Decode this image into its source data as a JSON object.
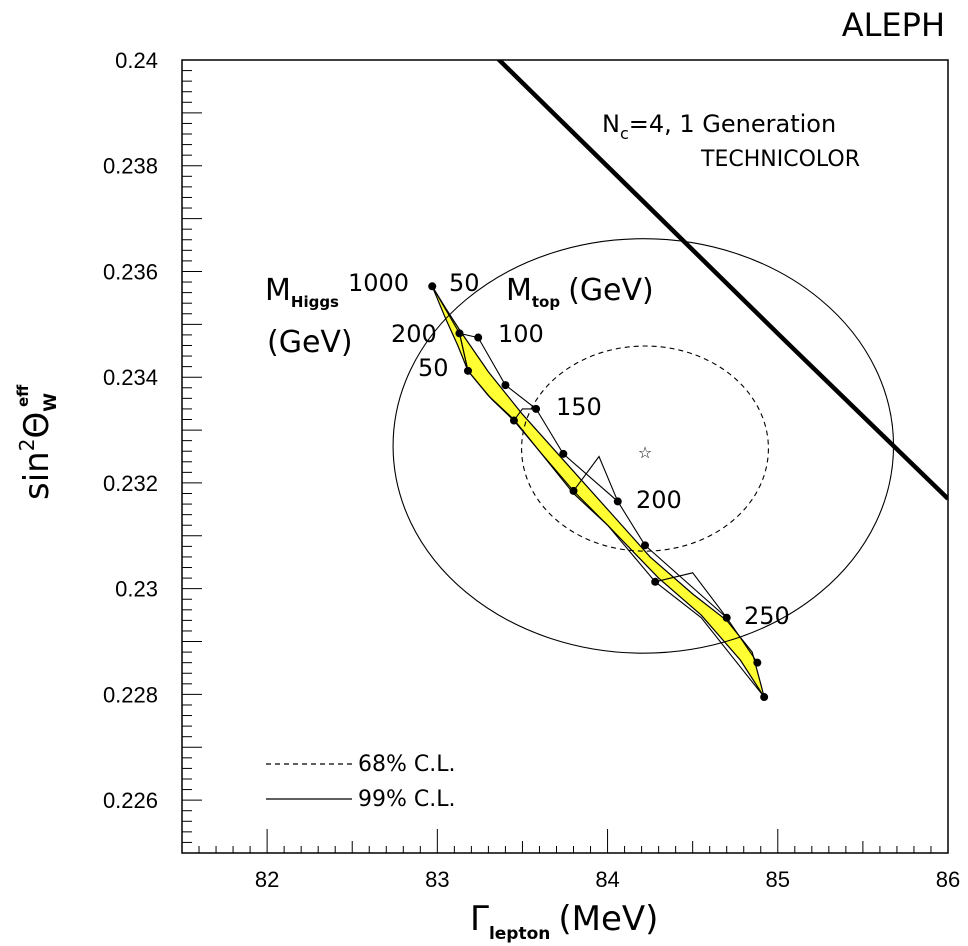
{
  "chart_data": {
    "type": "scatter",
    "experiment_label": "ALEPH",
    "xlabel": {
      "main": "Γ",
      "sub": "lepton",
      "unit": "(MeV)"
    },
    "ylabel": {
      "pre": "sin",
      "sup1": "2",
      "theta": "Θ",
      "sub": "W",
      "sup2": "eff"
    },
    "xlim": [
      81.5,
      86.0
    ],
    "ylim": [
      0.225,
      0.24
    ],
    "x_ticks": [
      82,
      83,
      84,
      85,
      86
    ],
    "x_tick_labels": [
      "82",
      "83",
      "84",
      "85",
      "86"
    ],
    "y_ticks": [
      0.226,
      0.228,
      0.23,
      0.232,
      0.234,
      0.236,
      0.238,
      0.24
    ],
    "y_tick_labels": [
      "0.226",
      "0.228",
      "0.23",
      "0.232",
      "0.234",
      "0.236",
      "0.238",
      "0.24"
    ],
    "grid": false,
    "measurement": {
      "x": 84.22,
      "y": 0.2326,
      "marker": "star"
    },
    "contours": [
      {
        "name": "68% C.L.",
        "style": "dashed",
        "cx": 84.22,
        "cy": 0.23265,
        "rx": 0.725,
        "ry": 0.00194
      },
      {
        "name": "99% C.L.",
        "style": "solid",
        "cx": 84.21,
        "cy": 0.2327,
        "rx": 1.47,
        "ry": 0.00392
      }
    ],
    "legend_placement": "bottom-left",
    "technicolor": {
      "label_line1_main": "N",
      "label_line1_sub": "c",
      "label_line1_rest": "=4, 1 Generation",
      "label_line2": "TECHNICOLOR",
      "points": [
        [
          83.3,
          0.2402
        ],
        [
          85.04,
          0.2347
        ],
        [
          86.0,
          0.2317
        ]
      ]
    },
    "sm_band": {
      "color": "#ffff33",
      "outline": [
        [
          82.97,
          0.23572
        ],
        [
          83.05,
          0.2353
        ],
        [
          83.15,
          0.2348
        ],
        [
          83.3,
          0.2341
        ],
        [
          83.5,
          0.2333
        ],
        [
          83.75,
          0.2324
        ],
        [
          84.0,
          0.2315
        ],
        [
          84.25,
          0.2306
        ],
        [
          84.5,
          0.2299
        ],
        [
          84.7,
          0.2294
        ],
        [
          84.85,
          0.2288
        ],
        [
          84.92,
          0.22795
        ],
        [
          84.78,
          0.22865
        ],
        [
          84.55,
          0.2295
        ],
        [
          84.3,
          0.2302
        ],
        [
          84.0,
          0.2312
        ],
        [
          83.8,
          0.2318
        ],
        [
          83.6,
          0.2326
        ],
        [
          83.45,
          0.2332
        ],
        [
          83.3,
          0.23365
        ],
        [
          83.18,
          0.23412
        ],
        [
          83.12,
          0.2346
        ],
        [
          83.05,
          0.2351
        ],
        [
          82.97,
          0.23572
        ]
      ],
      "higgs_lines": [
        {
          "name": "M_Higgs=50",
          "points": [
            [
              83.24,
              0.23475
            ],
            [
              83.4,
              0.23385
            ],
            [
              83.58,
              0.2334
            ],
            [
              83.74,
              0.23255
            ],
            [
              84.06,
              0.23165
            ],
            [
              84.22,
              0.23082
            ],
            [
              84.7,
              0.22945
            ],
            [
              84.88,
              0.2286
            ]
          ]
        },
        {
          "name": "M_Higgs=200",
          "points": [
            [
              83.13,
              0.23483
            ],
            [
              83.18,
              0.23412
            ],
            [
              83.32,
              0.23358
            ],
            [
              83.45,
              0.23318
            ],
            [
              83.6,
              0.2326
            ],
            [
              83.8,
              0.23185
            ],
            [
              84.0,
              0.2312
            ],
            [
              84.28,
              0.23013
            ],
            [
              84.55,
              0.22945
            ],
            [
              84.92,
              0.22795
            ]
          ]
        }
      ],
      "top_lines": [
        {
          "name": "M_top=50",
          "points": [
            [
              82.97,
              0.23572
            ],
            [
              83.13,
              0.23483
            ]
          ]
        },
        {
          "name": "M_top=100",
          "points": [
            [
              83.24,
              0.23475
            ],
            [
              83.13,
              0.23483
            ],
            [
              83.18,
              0.23412
            ]
          ]
        },
        {
          "name": "M_top=150",
          "points": [
            [
              83.58,
              0.2334
            ],
            [
              83.5,
              0.2334
            ],
            [
              83.45,
              0.23318
            ]
          ]
        },
        {
          "name": "M_top=200",
          "points": [
            [
              84.06,
              0.23165
            ],
            [
              83.95,
              0.2325
            ],
            [
              83.8,
              0.23185
            ]
          ]
        },
        {
          "name": "M_top=250",
          "points": [
            [
              84.7,
              0.22945
            ],
            [
              84.5,
              0.2303
            ],
            [
              84.28,
              0.23013
            ]
          ]
        }
      ],
      "points": [
        {
          "x": 82.97,
          "y": 0.23572
        },
        {
          "x": 83.13,
          "y": 0.23483
        },
        {
          "x": 83.24,
          "y": 0.23475
        },
        {
          "x": 83.18,
          "y": 0.23412
        },
        {
          "x": 83.4,
          "y": 0.23385
        },
        {
          "x": 83.45,
          "y": 0.23318
        },
        {
          "x": 83.58,
          "y": 0.2334
        },
        {
          "x": 83.74,
          "y": 0.23255
        },
        {
          "x": 83.8,
          "y": 0.23185
        },
        {
          "x": 84.06,
          "y": 0.23165
        },
        {
          "x": 84.22,
          "y": 0.23082
        },
        {
          "x": 84.28,
          "y": 0.23013
        },
        {
          "x": 84.7,
          "y": 0.22945
        },
        {
          "x": 84.88,
          "y": 0.2286
        },
        {
          "x": 84.92,
          "y": 0.22795
        }
      ]
    },
    "annotations": {
      "mhiggs_main": "M",
      "mhiggs_sub": "Higgs",
      "mhiggs_unit": "(GeV)",
      "mtop_main": "M",
      "mtop_sub": "top",
      "mtop_unit": "(GeV)",
      "higgs_values": [
        "1000",
        "200",
        "50"
      ],
      "top_values": [
        "50",
        "100",
        "150",
        "200",
        "250"
      ]
    }
  }
}
